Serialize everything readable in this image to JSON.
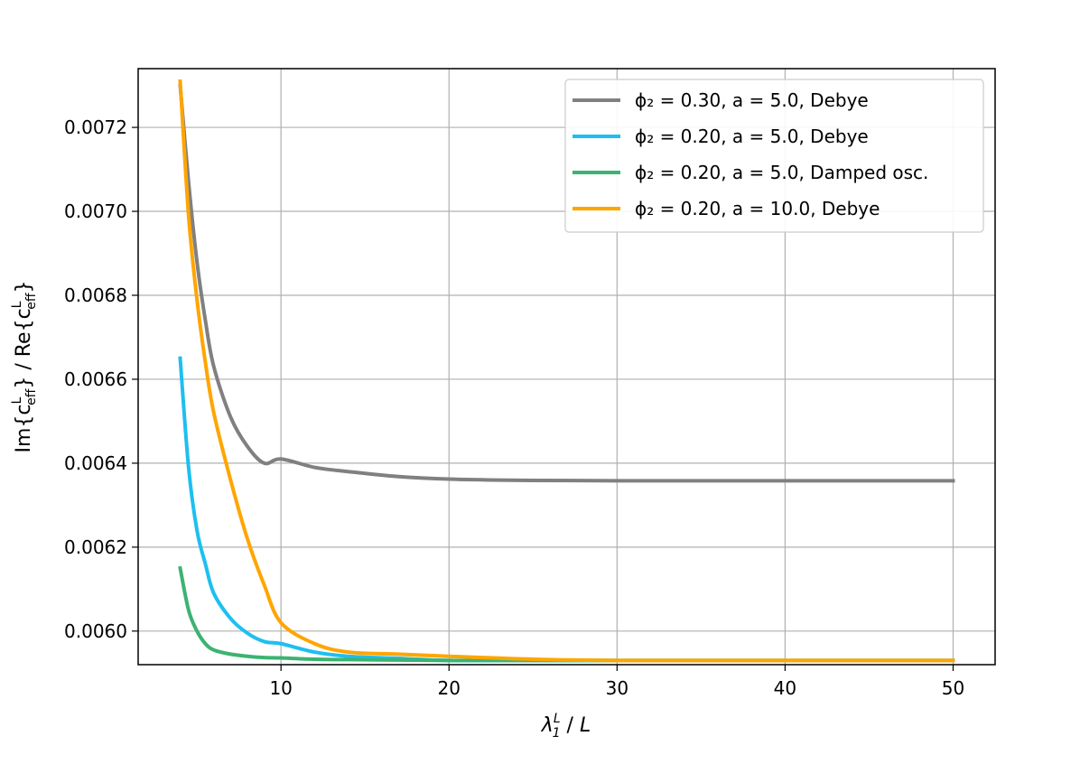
{
  "chart_data": {
    "type": "line",
    "xlabel": "λ₁ᴸ / L",
    "ylabel": "Im{cᴸ_eff} / Re{cᴸ_eff}",
    "xlim": [
      1.5,
      52.5
    ],
    "ylim": [
      0.00592,
      0.00734
    ],
    "xticks": [
      10,
      20,
      30,
      40,
      50
    ],
    "yticks": [
      0.006,
      0.0062,
      0.0064,
      0.0066,
      0.0068,
      0.007,
      0.0072
    ],
    "xtick_labels": [
      "10",
      "20",
      "30",
      "40",
      "50"
    ],
    "ytick_labels": [
      "0.0060",
      "0.0062",
      "0.0064",
      "0.0066",
      "0.0068",
      "0.0070",
      "0.0072"
    ],
    "grid": true,
    "legend_position": "top-right",
    "series": [
      {
        "name": "ϕ₂ = 0.30, a = 5.0, Debye",
        "color": "#808080",
        "x": [
          4,
          4.5,
          5,
          5.5,
          6,
          7,
          8,
          9,
          10,
          12,
          14,
          17,
          20,
          25,
          30,
          35,
          40,
          45,
          50
        ],
        "y": [
          0.0073,
          0.00707,
          0.00688,
          0.00674,
          0.00663,
          0.00651,
          0.00644,
          0.0064,
          0.00641,
          0.00639,
          0.00638,
          0.006368,
          0.006362,
          0.006359,
          0.006358,
          0.006358,
          0.006358,
          0.006358,
          0.006358
        ]
      },
      {
        "name": "ϕ₂ = 0.20, a = 5.0, Debye",
        "color": "#1ebfef",
        "x": [
          4,
          4.5,
          5,
          5.5,
          6,
          7,
          8,
          9,
          10,
          12,
          14,
          17,
          20,
          25,
          30,
          35,
          40,
          45,
          50
        ],
        "y": [
          0.00665,
          0.00639,
          0.00624,
          0.00616,
          0.00609,
          0.00603,
          0.005995,
          0.005975,
          0.00597,
          0.00595,
          0.00594,
          0.005935,
          0.00593,
          0.00593,
          0.00593,
          0.00593,
          0.00593,
          0.00593,
          0.00593
        ]
      },
      {
        "name": "ϕ₂ = 0.20, a = 5.0, Damped osc.",
        "color": "#3cb371",
        "x": [
          4,
          4.5,
          5,
          5.5,
          6,
          7,
          8,
          9,
          10,
          12,
          14,
          17,
          20,
          25,
          30,
          35,
          40,
          45,
          50
        ],
        "y": [
          0.00615,
          0.00605,
          0.006,
          0.00597,
          0.005955,
          0.005945,
          0.00594,
          0.005937,
          0.005936,
          0.005933,
          0.005932,
          0.005931,
          0.00593,
          0.00593,
          0.00593,
          0.00593,
          0.00593,
          0.00593,
          0.00593
        ]
      },
      {
        "name": "ϕ₂ = 0.20, a = 10.0, Debye",
        "color": "#ffa500",
        "x": [
          4,
          4.5,
          5,
          5.5,
          6,
          7,
          8,
          9,
          10,
          12,
          14,
          17,
          20,
          25,
          30,
          35,
          40,
          45,
          50
        ],
        "y": [
          0.00731,
          0.00699,
          0.00679,
          0.00664,
          0.00652,
          0.00636,
          0.00622,
          0.00611,
          0.00602,
          0.00597,
          0.00595,
          0.005945,
          0.00594,
          0.005933,
          0.00593,
          0.00593,
          0.00593,
          0.00593,
          0.00593
        ]
      }
    ]
  }
}
